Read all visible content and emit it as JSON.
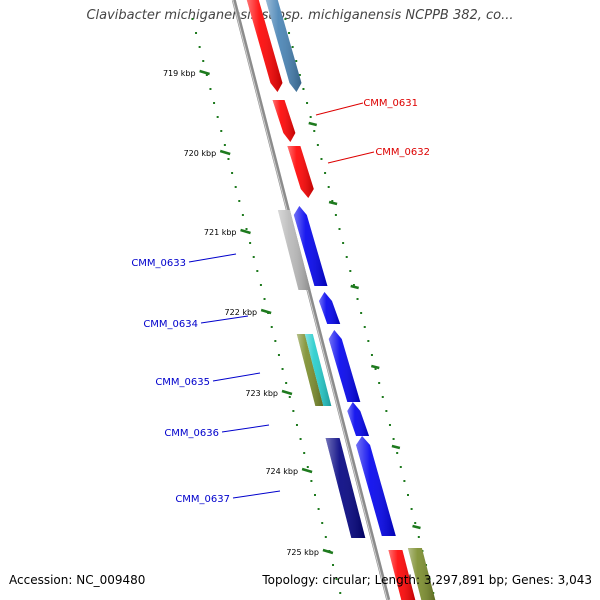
{
  "title": "Clavibacter michiganensis subsp. michiganensis NCPPB 382, co...",
  "accession_text": "Accession: NC_009480",
  "topology_text": "Topology: circular; Length: 3,297,891 bp; Genes: 3,043",
  "colors": {
    "backbone": "#8c8c8c",
    "tick": "#1e7a1e",
    "red": "#ff0000",
    "steelblue": "#4682b4",
    "blue": "#0000ee",
    "navy": "#000080",
    "gray": "#b8b8b8",
    "olive": "#7a8c2a",
    "cyan": "#22cccc",
    "red_label": "#dd0000",
    "blue_label": "#0000cc"
  },
  "ticks": [
    {
      "label": "719 kbp"
    },
    {
      "label": "720 kbp"
    },
    {
      "label": "721 kbp"
    },
    {
      "label": "722 kbp"
    },
    {
      "label": "723 kbp"
    },
    {
      "label": "724 kbp"
    },
    {
      "label": "725 kbp"
    }
  ],
  "gene_labels": [
    {
      "text": "CMM_0631",
      "color": "red"
    },
    {
      "text": "CMM_0632",
      "color": "red"
    },
    {
      "text": "CMM_0633",
      "color": "blue"
    },
    {
      "text": "CMM_0634",
      "color": "blue"
    },
    {
      "text": "CMM_0635",
      "color": "blue"
    },
    {
      "text": "CMM_0636",
      "color": "blue"
    },
    {
      "text": "CMM_0637",
      "color": "blue"
    }
  ]
}
